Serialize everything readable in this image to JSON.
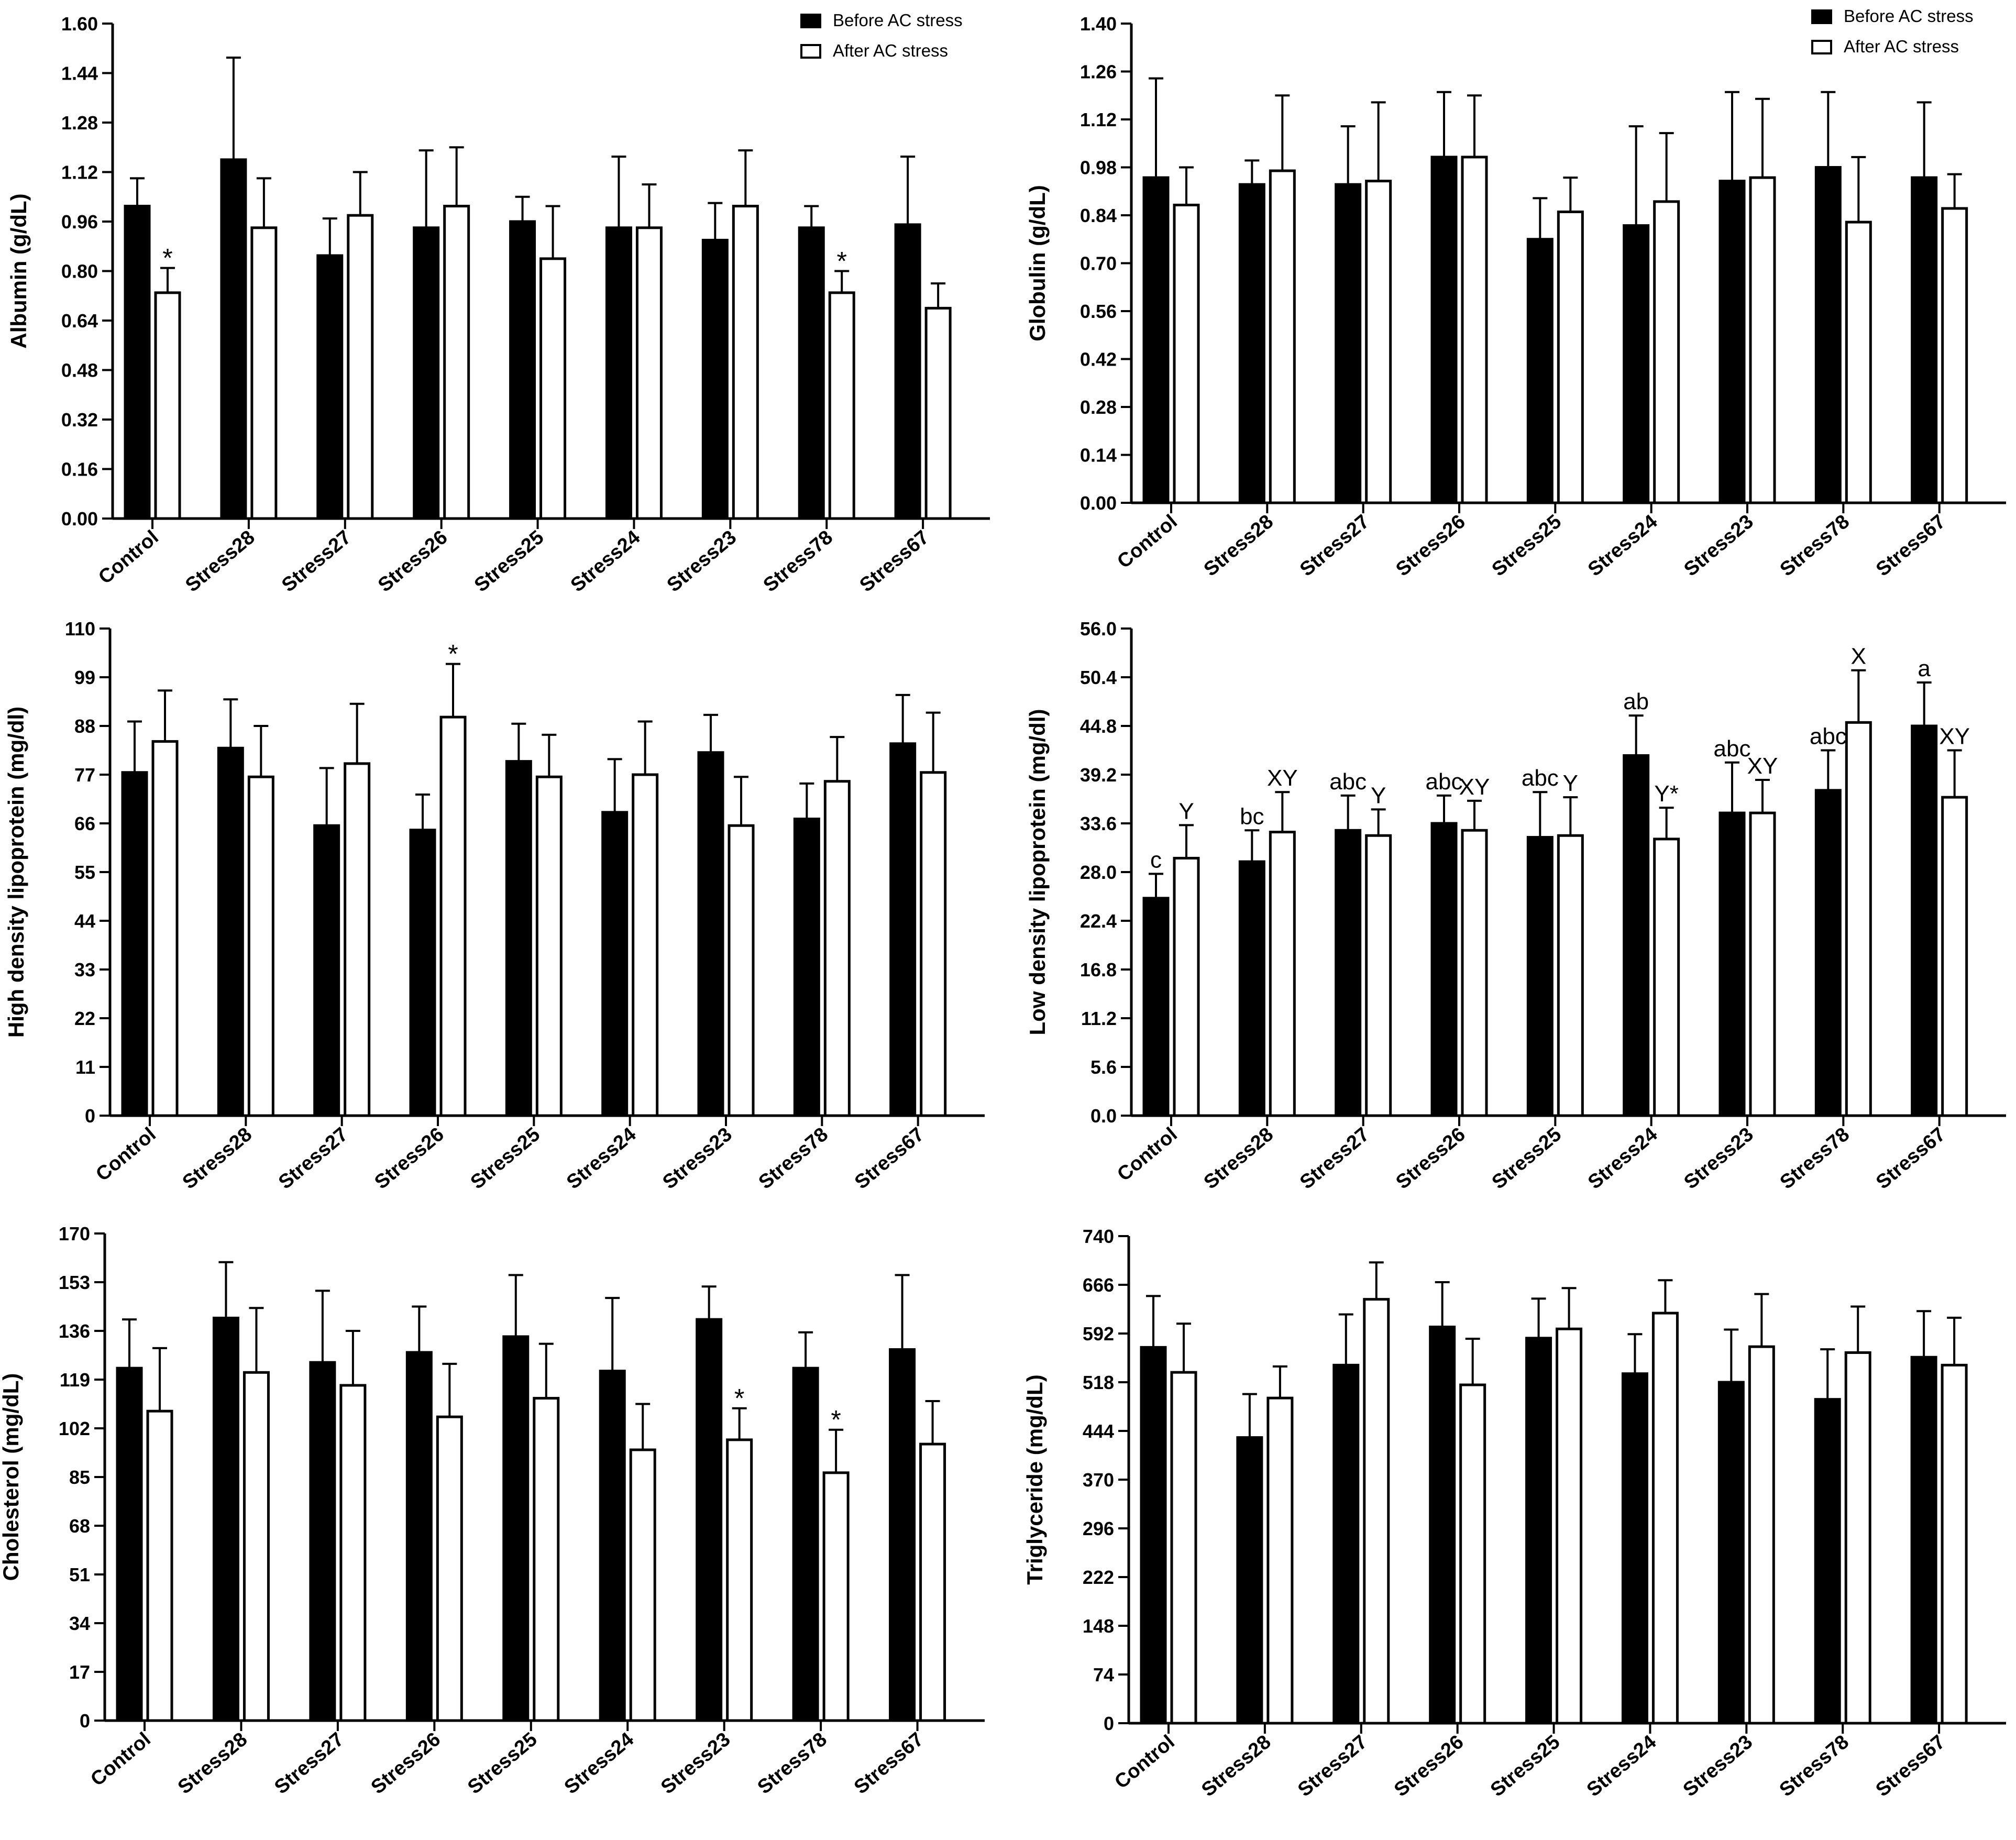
{
  "legend": {
    "before": "Before AC stress",
    "after": "After AC stress"
  },
  "colors": {
    "before": "#000000",
    "after": "#ffffff",
    "axis": "#000000"
  },
  "chart_data": [
    {
      "id": "albumin",
      "type": "bar",
      "ylabel": "Albumin (g/dL)",
      "ylim": [
        0,
        1.6
      ],
      "yticks": [
        "0.00",
        "0.16",
        "0.32",
        "0.48",
        "0.64",
        "0.80",
        "0.96",
        "1.12",
        "1.28",
        "1.44",
        "1.60"
      ],
      "categories": [
        "Control",
        "Stress28",
        "Stress27",
        "Stress26",
        "Stress25",
        "Stress24",
        "Stress23",
        "Stress78",
        "Stress67"
      ],
      "legend_position": "top-right",
      "series": [
        {
          "name": "Before AC stress",
          "values": [
            1.01,
            1.16,
            0.85,
            0.94,
            0.96,
            0.94,
            0.9,
            0.94,
            0.95
          ],
          "errors": [
            0.09,
            0.33,
            0.12,
            0.25,
            0.08,
            0.23,
            0.12,
            0.07,
            0.22
          ]
        },
        {
          "name": "After AC stress",
          "values": [
            0.73,
            0.94,
            0.98,
            1.01,
            0.84,
            0.94,
            1.01,
            0.73,
            0.68
          ],
          "errors": [
            0.08,
            0.16,
            0.14,
            0.19,
            0.17,
            0.14,
            0.18,
            0.07,
            0.08
          ]
        }
      ],
      "annotations": [
        {
          "series": 1,
          "index": 0,
          "text": "*"
        },
        {
          "series": 1,
          "index": 7,
          "text": "*"
        }
      ]
    },
    {
      "id": "globulin",
      "type": "bar",
      "ylabel": "Globulin (g/dL)",
      "ylim": [
        0,
        1.4
      ],
      "yticks": [
        "0.00",
        "0.14",
        "0.28",
        "0.42",
        "0.56",
        "0.70",
        "0.84",
        "0.98",
        "1.12",
        "1.26",
        "1.40"
      ],
      "categories": [
        "Control",
        "Stress28",
        "Stress27",
        "Stress26",
        "Stress25",
        "Stress24",
        "Stress23",
        "Stress78",
        "Stress67"
      ],
      "legend_position": "top-right",
      "series": [
        {
          "name": "Before AC stress",
          "values": [
            0.95,
            0.93,
            0.93,
            1.01,
            0.77,
            0.81,
            0.94,
            0.98,
            0.95
          ],
          "errors": [
            0.29,
            0.07,
            0.17,
            0.19,
            0.12,
            0.29,
            0.26,
            0.22,
            0.22
          ]
        },
        {
          "name": "After AC stress",
          "values": [
            0.87,
            0.97,
            0.94,
            1.01,
            0.85,
            0.88,
            0.95,
            0.82,
            0.86
          ],
          "errors": [
            0.11,
            0.22,
            0.23,
            0.18,
            0.1,
            0.2,
            0.23,
            0.19,
            0.1
          ]
        }
      ],
      "annotations": []
    },
    {
      "id": "hdl",
      "type": "bar",
      "ylabel": "High density lipoprotein (mg/dl)",
      "ylim": [
        0,
        110
      ],
      "yticks": [
        "0",
        "11",
        "22",
        "33",
        "44",
        "55",
        "66",
        "77",
        "88",
        "99",
        "110"
      ],
      "categories": [
        "Control",
        "Stress28",
        "Stress27",
        "Stress26",
        "Stress25",
        "Stress24",
        "Stress23",
        "Stress78",
        "Stress67"
      ],
      "legend_position": "none",
      "series": [
        {
          "name": "Before AC stress",
          "values": [
            77.5,
            83,
            65.5,
            64.5,
            80,
            68.5,
            82,
            67,
            84
          ],
          "errors": [
            11.5,
            11,
            13,
            8,
            8.5,
            12,
            8.5,
            8,
            11
          ]
        },
        {
          "name": "After AC stress",
          "values": [
            84.5,
            76.5,
            79.5,
            90,
            76.5,
            77,
            65.5,
            75.5,
            77.5
          ],
          "errors": [
            11.5,
            11.5,
            13.5,
            12,
            9.5,
            12,
            11,
            10,
            13.5
          ]
        }
      ],
      "annotations": [
        {
          "series": 1,
          "index": 3,
          "text": "*"
        }
      ]
    },
    {
      "id": "ldl",
      "type": "bar",
      "ylabel": "Low density lipoprotein (mg/dl)",
      "ylim": [
        0,
        56
      ],
      "yticks": [
        "0.0",
        "5.6",
        "11.2",
        "16.8",
        "22.4",
        "28.0",
        "33.6",
        "39.2",
        "44.8",
        "50.4",
        "56.0"
      ],
      "categories": [
        "Control",
        "Stress28",
        "Stress27",
        "Stress26",
        "Stress25",
        "Stress24",
        "Stress23",
        "Stress78",
        "Stress67"
      ],
      "legend_position": "none",
      "series": [
        {
          "name": "Before AC stress",
          "values": [
            25,
            29.2,
            32.8,
            33.6,
            32,
            41.4,
            34.8,
            37.4,
            44.8
          ],
          "errors": [
            2.8,
            3.6,
            4,
            3.2,
            5.2,
            4.6,
            5.8,
            4.6,
            5
          ]
        },
        {
          "name": "After AC stress",
          "values": [
            29.6,
            32.6,
            32.2,
            32.8,
            32.2,
            31.8,
            34.8,
            45.2,
            36.6
          ],
          "errors": [
            3.8,
            4.6,
            3,
            3.4,
            4.4,
            3.6,
            3.8,
            6,
            5.4
          ]
        }
      ],
      "annotations": [
        {
          "series": 0,
          "index": 0,
          "text": "c"
        },
        {
          "series": 1,
          "index": 0,
          "text": "Y"
        },
        {
          "series": 0,
          "index": 1,
          "text": "bc"
        },
        {
          "series": 1,
          "index": 1,
          "text": "XY"
        },
        {
          "series": 0,
          "index": 2,
          "text": "abc"
        },
        {
          "series": 1,
          "index": 2,
          "text": "Y"
        },
        {
          "series": 0,
          "index": 3,
          "text": "abc"
        },
        {
          "series": 1,
          "index": 3,
          "text": "XY"
        },
        {
          "series": 0,
          "index": 4,
          "text": "abc"
        },
        {
          "series": 1,
          "index": 4,
          "text": "Y"
        },
        {
          "series": 0,
          "index": 5,
          "text": "ab"
        },
        {
          "series": 1,
          "index": 5,
          "text": "Y*"
        },
        {
          "series": 0,
          "index": 6,
          "text": "abc"
        },
        {
          "series": 1,
          "index": 6,
          "text": "XY"
        },
        {
          "series": 0,
          "index": 7,
          "text": "abc"
        },
        {
          "series": 1,
          "index": 7,
          "text": "X"
        },
        {
          "series": 0,
          "index": 8,
          "text": "a"
        },
        {
          "series": 1,
          "index": 8,
          "text": "XY"
        }
      ]
    },
    {
      "id": "cholesterol",
      "type": "bar",
      "ylabel": "Cholesterol (mg/dL)",
      "ylim": [
        0,
        170
      ],
      "yticks": [
        "0",
        "17",
        "34",
        "51",
        "68",
        "85",
        "102",
        "119",
        "136",
        "153",
        "170"
      ],
      "categories": [
        "Control",
        "Stress28",
        "Stress27",
        "Stress26",
        "Stress25",
        "Stress24",
        "Stress23",
        "Stress78",
        "Stress67"
      ],
      "legend_position": "none",
      "series": [
        {
          "name": "Before AC stress",
          "values": [
            123,
            140.5,
            125,
            128.5,
            134,
            122,
            140,
            123,
            129.5
          ],
          "errors": [
            17,
            19.5,
            25,
            16,
            21.5,
            25.5,
            11.5,
            12.5,
            26
          ]
        },
        {
          "name": "After AC stress",
          "values": [
            108,
            121.5,
            117,
            106,
            112.5,
            94.5,
            98,
            86.5,
            96.5
          ],
          "errors": [
            22,
            22.5,
            19,
            18.5,
            19,
            16,
            11,
            15,
            15
          ]
        }
      ],
      "annotations": [
        {
          "series": 1,
          "index": 6,
          "text": "*"
        },
        {
          "series": 1,
          "index": 7,
          "text": "*"
        }
      ]
    },
    {
      "id": "triglyceride",
      "type": "bar",
      "ylabel": "Triglyceride (mg/dL)",
      "ylim": [
        0,
        740
      ],
      "yticks": [
        "0",
        "74",
        "148",
        "222",
        "296",
        "370",
        "444",
        "518",
        "592",
        "666",
        "740"
      ],
      "categories": [
        "Control",
        "Stress28",
        "Stress27",
        "Stress26",
        "Stress25",
        "Stress24",
        "Stress23",
        "Stress78",
        "Stress67"
      ],
      "legend_position": "none",
      "series": [
        {
          "name": "Before AC stress",
          "values": [
            571,
            434,
            544,
            602,
            585,
            531,
            518,
            492,
            556
          ],
          "errors": [
            78,
            66,
            77,
            68,
            60,
            60,
            80,
            76,
            70
          ]
        },
        {
          "name": "After AC stress",
          "values": [
            533,
            494,
            644,
            514,
            599,
            623,
            572,
            563,
            544
          ],
          "errors": [
            74,
            48,
            56,
            70,
            62,
            50,
            80,
            70,
            72
          ]
        }
      ],
      "annotations": []
    }
  ]
}
